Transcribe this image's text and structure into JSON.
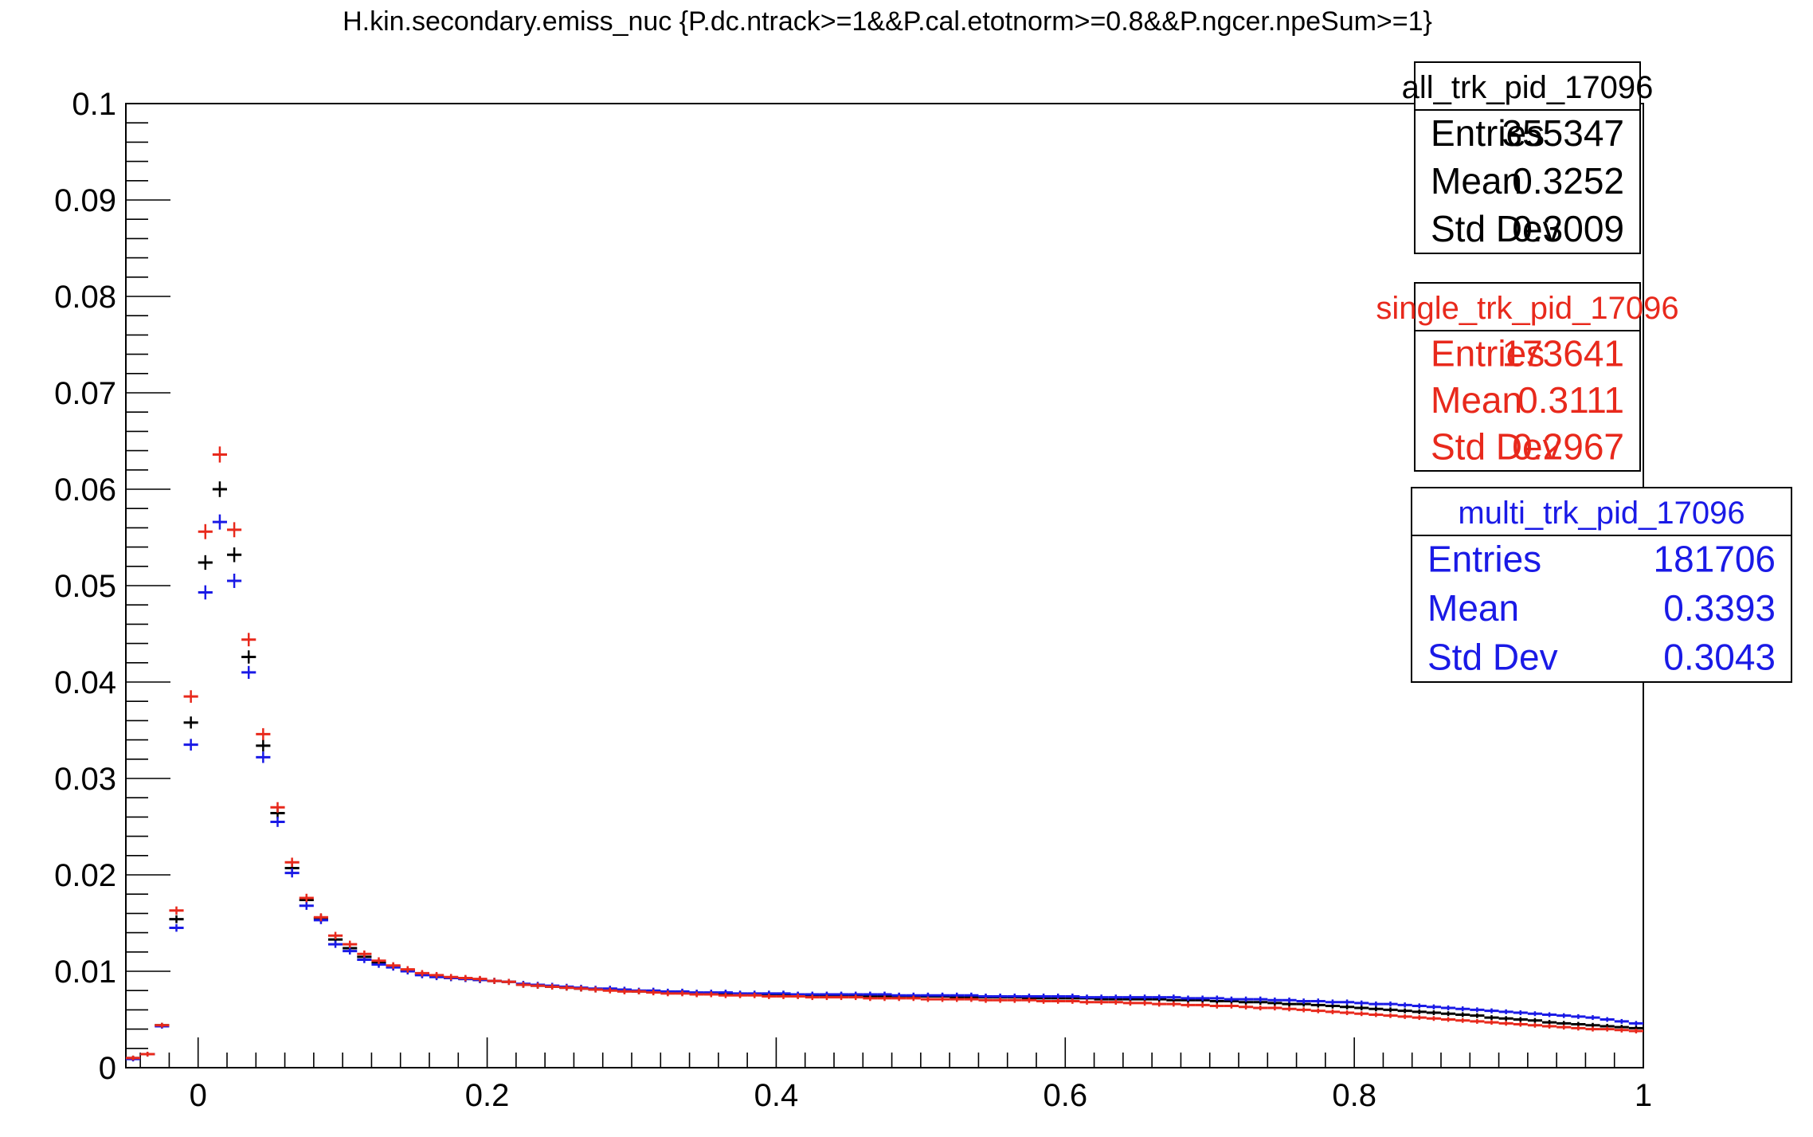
{
  "chart_data": {
    "type": "scatter",
    "title": "H.kin.secondary.emiss_nuc {P.dc.ntrack>=1&&P.cal.etotnorm>=0.8&&P.ngcer.npeSum>=1}",
    "xlabel": "",
    "ylabel": "",
    "xlim": [
      -0.05,
      1.0
    ],
    "ylim": [
      0,
      0.1
    ],
    "xticks": [
      "0",
      "0.2",
      "0.4",
      "0.6",
      "0.8",
      "1"
    ],
    "yticks": [
      "0",
      "0.01",
      "0.02",
      "0.03",
      "0.04",
      "0.05",
      "0.06",
      "0.07",
      "0.08",
      "0.09",
      "0.1"
    ],
    "grid": false,
    "legend": "top-right",
    "bin_width": 0.01,
    "bin_starts": [
      -0.05,
      -0.04,
      -0.03,
      -0.02,
      -0.01,
      0.0,
      0.01,
      0.02,
      0.03,
      0.04,
      0.05,
      0.06,
      0.07,
      0.08,
      0.09,
      0.1,
      0.11,
      0.12,
      0.13,
      0.14,
      0.15,
      0.16,
      0.17,
      0.18,
      0.19,
      0.2,
      0.21,
      0.22,
      0.23,
      0.24,
      0.25,
      0.26,
      0.27,
      0.28,
      0.29,
      0.3,
      0.31,
      0.32,
      0.33,
      0.34,
      0.35,
      0.36,
      0.37,
      0.38,
      0.39,
      0.4,
      0.41,
      0.42,
      0.43,
      0.44,
      0.45,
      0.46,
      0.47,
      0.48,
      0.49,
      0.5,
      0.51,
      0.52,
      0.53,
      0.54,
      0.55,
      0.56,
      0.57,
      0.58,
      0.59,
      0.6,
      0.61,
      0.62,
      0.63,
      0.64,
      0.65,
      0.66,
      0.67,
      0.68,
      0.69,
      0.7,
      0.71,
      0.72,
      0.73,
      0.74,
      0.75,
      0.76,
      0.77,
      0.78,
      0.79,
      0.8,
      0.81,
      0.82,
      0.83,
      0.84,
      0.85,
      0.86,
      0.87,
      0.88,
      0.89,
      0.9,
      0.91,
      0.92,
      0.93,
      0.94,
      0.95,
      0.96,
      0.97,
      0.98,
      0.99
    ],
    "series": [
      {
        "name": "all_trk_pid_17096",
        "color": "#000000",
        "stats": {
          "entries_label": "Entries",
          "entries": "355347",
          "mean_label": "Mean",
          "mean": "0.3252",
          "std_label": "Std Dev",
          "std": "0.3009"
        },
        "values": [
          0.001,
          0.0014,
          0.0044,
          0.0154,
          0.0358,
          0.0524,
          0.06,
          0.0532,
          0.0426,
          0.0334,
          0.0264,
          0.0207,
          0.0174,
          0.0155,
          0.0133,
          0.0124,
          0.0115,
          0.0109,
          0.0105,
          0.0101,
          0.0097,
          0.0095,
          0.0093,
          0.0092,
          0.0091,
          0.009,
          0.0089,
          0.0086,
          0.0085,
          0.0084,
          0.0083,
          0.0082,
          0.0081,
          0.0081,
          0.008,
          0.0079,
          0.0079,
          0.0078,
          0.0078,
          0.0077,
          0.0077,
          0.0077,
          0.0076,
          0.0076,
          0.0076,
          0.0076,
          0.0075,
          0.0075,
          0.0075,
          0.0075,
          0.0075,
          0.0074,
          0.0074,
          0.0074,
          0.0074,
          0.0074,
          0.0074,
          0.0073,
          0.0073,
          0.0073,
          0.0073,
          0.0073,
          0.0072,
          0.0072,
          0.0072,
          0.0072,
          0.0072,
          0.0071,
          0.0071,
          0.0071,
          0.0071,
          0.0071,
          0.007,
          0.007,
          0.007,
          0.0069,
          0.0069,
          0.0068,
          0.0068,
          0.0067,
          0.0066,
          0.0066,
          0.0065,
          0.0064,
          0.0063,
          0.0062,
          0.0061,
          0.006,
          0.0059,
          0.0058,
          0.0057,
          0.0056,
          0.0055,
          0.0054,
          0.0052,
          0.0051,
          0.005,
          0.0049,
          0.0047,
          0.0046,
          0.0045,
          0.0044,
          0.0043,
          0.0042,
          0.0041
        ]
      },
      {
        "name": "single_trk_pid_17096",
        "color": "#e8291c",
        "stats": {
          "entries_label": "Entries",
          "entries": "173641",
          "mean_label": "Mean",
          "mean": "0.3111",
          "std_label": "Std Dev",
          "std": "0.2967"
        },
        "values": [
          0.001,
          0.0014,
          0.0044,
          0.0163,
          0.0385,
          0.0556,
          0.0636,
          0.0558,
          0.0444,
          0.0346,
          0.027,
          0.0213,
          0.0176,
          0.0156,
          0.0137,
          0.0128,
          0.0118,
          0.0111,
          0.0106,
          0.0102,
          0.0098,
          0.0096,
          0.0094,
          0.0093,
          0.0092,
          0.009,
          0.0089,
          0.0086,
          0.0085,
          0.0084,
          0.0083,
          0.0082,
          0.0081,
          0.008,
          0.0079,
          0.0079,
          0.0078,
          0.0077,
          0.0077,
          0.0076,
          0.0076,
          0.0075,
          0.0075,
          0.0075,
          0.0074,
          0.0074,
          0.0074,
          0.0073,
          0.0073,
          0.0073,
          0.0073,
          0.0072,
          0.0072,
          0.0072,
          0.0072,
          0.0071,
          0.0071,
          0.0071,
          0.0071,
          0.007,
          0.007,
          0.007,
          0.007,
          0.0069,
          0.0069,
          0.0069,
          0.0068,
          0.0068,
          0.0068,
          0.0067,
          0.0067,
          0.0066,
          0.0066,
          0.0065,
          0.0065,
          0.0064,
          0.0064,
          0.0063,
          0.0062,
          0.0062,
          0.0061,
          0.006,
          0.0059,
          0.0058,
          0.0057,
          0.0056,
          0.0055,
          0.0054,
          0.0053,
          0.0052,
          0.0051,
          0.005,
          0.0049,
          0.0048,
          0.0047,
          0.0046,
          0.0045,
          0.0044,
          0.0043,
          0.0042,
          0.0041,
          0.004,
          0.004,
          0.0039,
          0.0038
        ]
      },
      {
        "name": "multi_trk_pid_17096",
        "color": "#1a1ae6",
        "stats": {
          "entries_label": "Entries",
          "entries": "181706",
          "mean_label": "Mean",
          "mean": "0.3393",
          "std_label": "Std Dev",
          "std": "0.3043"
        },
        "values": [
          0.0009,
          0.0014,
          0.0043,
          0.0145,
          0.0335,
          0.0493,
          0.0566,
          0.0505,
          0.041,
          0.0322,
          0.0255,
          0.0202,
          0.0168,
          0.0153,
          0.0128,
          0.0121,
          0.0112,
          0.0107,
          0.0104,
          0.01,
          0.0096,
          0.0094,
          0.0093,
          0.0092,
          0.0091,
          0.009,
          0.0089,
          0.0087,
          0.0086,
          0.0085,
          0.0084,
          0.0083,
          0.0082,
          0.0082,
          0.0081,
          0.008,
          0.008,
          0.0079,
          0.0079,
          0.0078,
          0.0078,
          0.0078,
          0.0077,
          0.0077,
          0.0077,
          0.0077,
          0.0076,
          0.0076,
          0.0076,
          0.0076,
          0.0076,
          0.0076,
          0.0076,
          0.0075,
          0.0075,
          0.0075,
          0.0075,
          0.0075,
          0.0075,
          0.0074,
          0.0074,
          0.0074,
          0.0074,
          0.0074,
          0.0074,
          0.0074,
          0.0073,
          0.0073,
          0.0073,
          0.0073,
          0.0073,
          0.0073,
          0.0073,
          0.0072,
          0.0072,
          0.0072,
          0.0071,
          0.0071,
          0.0071,
          0.007,
          0.007,
          0.0069,
          0.0069,
          0.0068,
          0.0068,
          0.0067,
          0.0066,
          0.0066,
          0.0065,
          0.0064,
          0.0063,
          0.0062,
          0.0061,
          0.006,
          0.0059,
          0.0058,
          0.0057,
          0.0056,
          0.0055,
          0.0054,
          0.0053,
          0.0052,
          0.005,
          0.0048,
          0.0046
        ]
      }
    ]
  }
}
